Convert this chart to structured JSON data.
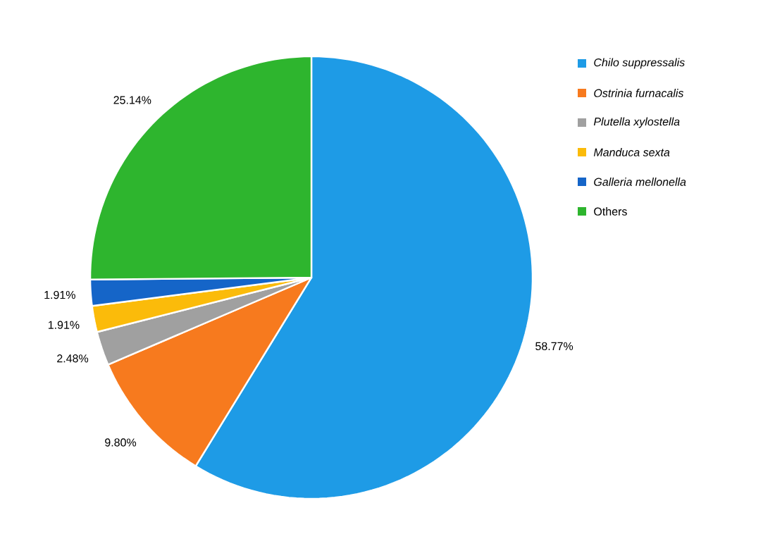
{
  "chart_data": {
    "type": "pie",
    "categories": [
      "*Chilo suppressalis*",
      "*Ostrinia furnacalis*",
      "*Plutella xylostella*",
      "*Manduca sexta*",
      "*Galleria mellonella*",
      "Others"
    ],
    "values": [
      58.77,
      9.8,
      2.48,
      1.91,
      1.91,
      25.14
    ],
    "value_labels": [
      "58.77%",
      "9.80%",
      "2.48%",
      "1.91%",
      "1.91%",
      "25.14%"
    ],
    "colors": [
      "#1e9be6",
      "#f77a1e",
      "#a0a0a0",
      "#fbbb0a",
      "#1565c8",
      "#2eb52e"
    ],
    "legend": "right"
  }
}
